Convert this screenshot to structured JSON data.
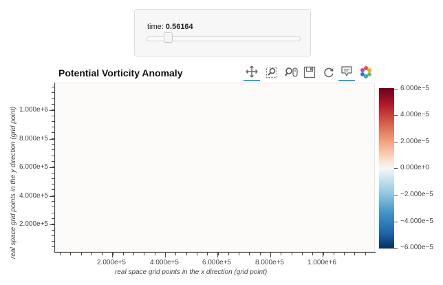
{
  "slider": {
    "label": "time:",
    "value": "0.56164",
    "fraction": 0.11
  },
  "plot": {
    "title": "Potential Vorticity Anomaly",
    "xlabel": "real space grid points in the x direction (grid point)",
    "ylabel": "real space grid points in the y direction (grid point)",
    "xticks": [
      "2.000e+5",
      "4.000e+5",
      "6.000e+5",
      "8.000e+5",
      "1.000e+6"
    ],
    "yticks": [
      "1.000e+6",
      "8.000e+5",
      "6.000e+5",
      "4.000e+5",
      "2.000e+5"
    ]
  },
  "toolbar": {
    "tools": [
      "pan-icon",
      "box-zoom-icon",
      "wheel-zoom-icon",
      "save-icon",
      "reset-icon",
      "hover-icon",
      "bokeh-logo-icon"
    ]
  },
  "colorbar": {
    "labels": [
      "6.000e−5",
      "4.000e−5",
      "2.000e−5",
      "0.000e+0",
      "−2.000e−5",
      "−4.000e−5",
      "−6.000e−5"
    ],
    "colors": {
      "max": "#67001f",
      "mid": "#f7f7f7",
      "min": "#053061"
    }
  }
}
